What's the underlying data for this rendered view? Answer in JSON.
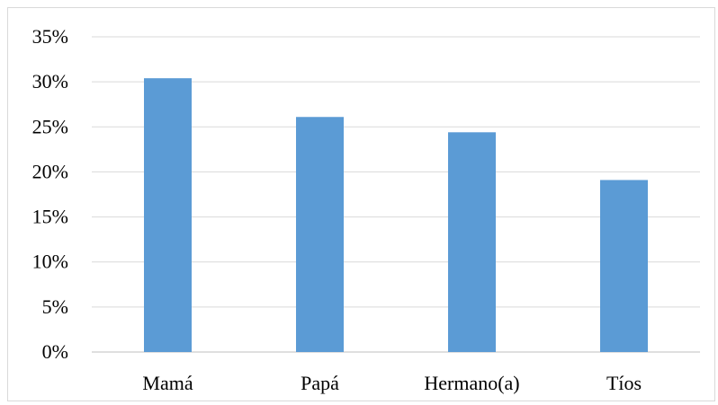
{
  "chart_data": {
    "type": "bar",
    "categories": [
      "Mamá",
      "Papá",
      "Hermano(a)",
      "Tíos"
    ],
    "values": [
      30.4,
      26.1,
      24.4,
      19.1
    ],
    "y_ticks": [
      "0%",
      "5%",
      "10%",
      "15%",
      "20%",
      "25%",
      "30%",
      "35%"
    ],
    "ylim": [
      0,
      35
    ],
    "grid": true,
    "legend": "none",
    "bar_color": "#5b9bd5",
    "grid_color": "#d9d9d9"
  }
}
